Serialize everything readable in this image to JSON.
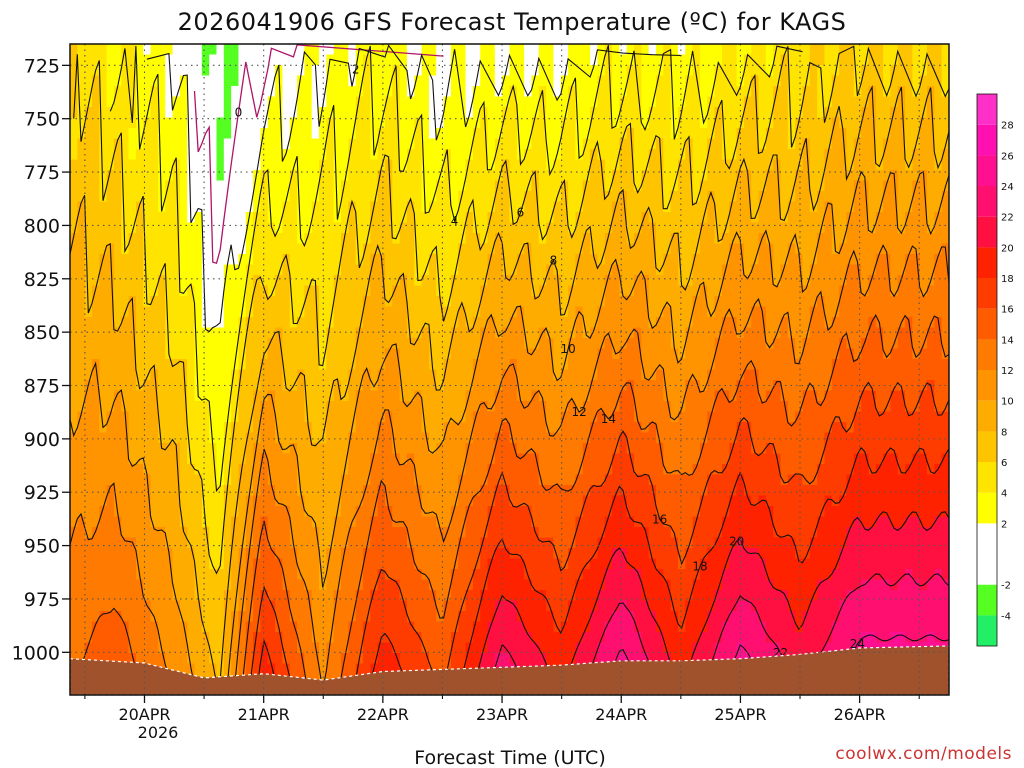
{
  "chart_data": {
    "type": "heatmap",
    "title": "2026041906 GFS Forecast Temperature (ºC) for KAGS",
    "xlabel": "Forecast Time (UTC)",
    "ylabel": "",
    "credit": "coolwx.com/models",
    "x_ticks": [
      "20APR",
      "21APR",
      "22APR",
      "23APR",
      "24APR",
      "25APR",
      "26APR"
    ],
    "x_year": "2026",
    "y_ticks": [
      725,
      750,
      775,
      800,
      825,
      850,
      875,
      900,
      925,
      950,
      975,
      1000
    ],
    "y_range": [
      715,
      1020
    ],
    "x_range_days": [
      19.375,
      26.75
    ],
    "colorbar": {
      "labels": [
        -4,
        -2,
        2,
        4,
        6,
        8,
        10,
        12,
        14,
        16,
        18,
        20,
        22,
        24,
        26,
        28
      ],
      "colors": [
        {
          "min": -6,
          "max": -4,
          "color": "#22ee66"
        },
        {
          "min": -4,
          "max": -2,
          "color": "#55ff22"
        },
        {
          "min": -2,
          "max": 2,
          "color": "#ffffff"
        },
        {
          "min": 2,
          "max": 4,
          "color": "#ffff00"
        },
        {
          "min": 4,
          "max": 6,
          "color": "#ffe400"
        },
        {
          "min": 6,
          "max": 8,
          "color": "#ffc400"
        },
        {
          "min": 8,
          "max": 10,
          "color": "#ffac00"
        },
        {
          "min": 10,
          "max": 12,
          "color": "#ff9400"
        },
        {
          "min": 12,
          "max": 14,
          "color": "#ff7a00"
        },
        {
          "min": 14,
          "max": 16,
          "color": "#ff5c00"
        },
        {
          "min": 16,
          "max": 18,
          "color": "#ff3c00"
        },
        {
          "min": 18,
          "max": 20,
          "color": "#ff2200"
        },
        {
          "min": 20,
          "max": 22,
          "color": "#ff1040"
        },
        {
          "min": 22,
          "max": 24,
          "color": "#ff1070"
        },
        {
          "min": 24,
          "max": 26,
          "color": "#ff1090"
        },
        {
          "min": 26,
          "max": 28,
          "color": "#ff10b0"
        },
        {
          "min": 28,
          "max": 30,
          "color": "#ff30c8"
        }
      ]
    },
    "ground_color": "#a0522d",
    "surface_pressure": [
      {
        "day": 19.375,
        "p": 1003
      },
      {
        "day": 20.0,
        "p": 1005
      },
      {
        "day": 20.5,
        "p": 1012
      },
      {
        "day": 21.0,
        "p": 1010
      },
      {
        "day": 21.5,
        "p": 1013
      },
      {
        "day": 22.0,
        "p": 1009
      },
      {
        "day": 22.5,
        "p": 1008
      },
      {
        "day": 23.0,
        "p": 1007
      },
      {
        "day": 23.5,
        "p": 1006
      },
      {
        "day": 24.0,
        "p": 1004
      },
      {
        "day": 24.5,
        "p": 1004
      },
      {
        "day": 25.0,
        "p": 1003
      },
      {
        "day": 25.5,
        "p": 1001
      },
      {
        "day": 26.0,
        "p": 998
      },
      {
        "day": 26.75,
        "p": 997
      }
    ],
    "temperature_profiles": [
      {
        "day": 19.375,
        "t_upper": 6,
        "t_lower": 14
      },
      {
        "day": 19.75,
        "t_upper": 4,
        "t_lower": 16
      },
      {
        "day": 20.25,
        "t_upper": 2,
        "t_lower": 12
      },
      {
        "day": 20.625,
        "t_upper": -3,
        "t_lower": 8
      },
      {
        "day": 21.0,
        "t_upper": 0,
        "t_lower": 20
      },
      {
        "day": 21.5,
        "t_upper": 2,
        "t_lower": 12
      },
      {
        "day": 22.0,
        "t_upper": 3,
        "t_lower": 20
      },
      {
        "day": 22.5,
        "t_upper": 1,
        "t_lower": 16
      },
      {
        "day": 23.0,
        "t_upper": 2,
        "t_lower": 24
      },
      {
        "day": 23.5,
        "t_upper": 2,
        "t_lower": 20
      },
      {
        "day": 24.0,
        "t_upper": 3,
        "t_lower": 26
      },
      {
        "day": 24.5,
        "t_upper": 3,
        "t_lower": 20
      },
      {
        "day": 25.0,
        "t_upper": 4,
        "t_lower": 26
      },
      {
        "day": 25.5,
        "t_upper": 5,
        "t_lower": 22
      },
      {
        "day": 26.0,
        "t_upper": 6,
        "t_lower": 26
      },
      {
        "day": 26.75,
        "t_upper": 6,
        "t_lower": 26
      }
    ],
    "contour_levels": [
      0,
      2,
      4,
      6,
      8,
      10,
      12,
      14,
      16,
      18,
      20,
      22,
      24
    ]
  }
}
